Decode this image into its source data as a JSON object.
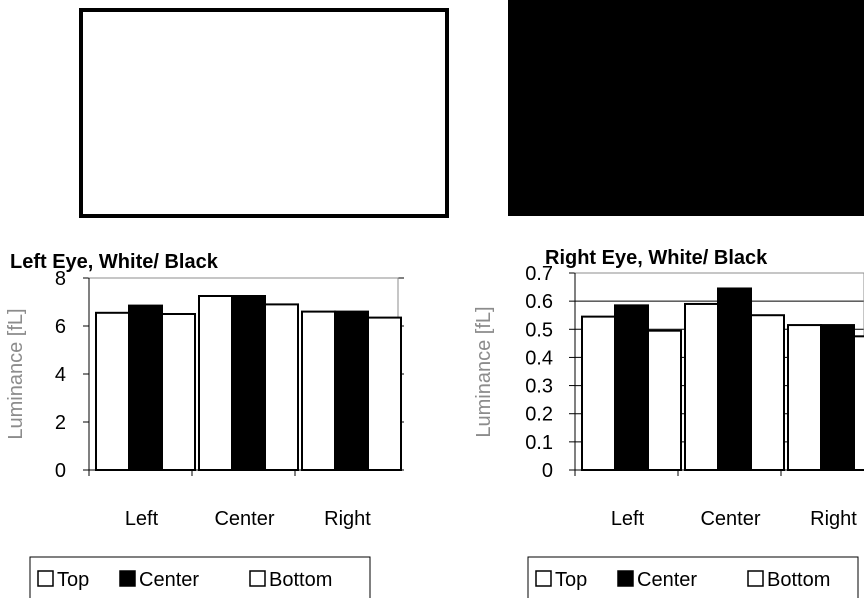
{
  "swatches": [
    {
      "name": "white-pattern",
      "color": "#ffffff"
    },
    {
      "name": "black-pattern",
      "color": "#000000"
    }
  ],
  "colors": {
    "Top": "#ffffff",
    "Center": "#000000",
    "Bottom": "#ffffff"
  },
  "chart_data": [
    {
      "type": "bar",
      "title": "Left Eye, White/ Black",
      "ylabel": "Luminance [fL]",
      "xlabel": "",
      "categories": [
        "Left",
        "Center",
        "Right"
      ],
      "series": [
        {
          "name": "Top",
          "values": [
            6.55,
            7.25,
            6.6
          ]
        },
        {
          "name": "Center",
          "values": [
            6.85,
            7.25,
            6.6
          ]
        },
        {
          "name": "Bottom",
          "values": [
            6.5,
            6.9,
            6.35
          ]
        }
      ],
      "ylim": [
        0,
        8
      ],
      "yticks": [
        "0",
        "2",
        "4",
        "6",
        "8"
      ],
      "grid": false,
      "legend": "bottom"
    },
    {
      "type": "bar",
      "title": "Right Eye, White/ Black",
      "ylabel": "Luminance [fL]",
      "xlabel": "",
      "categories": [
        "Left",
        "Center",
        "Right"
      ],
      "series": [
        {
          "name": "Top",
          "values": [
            0.545,
            0.59,
            0.515
          ]
        },
        {
          "name": "Center",
          "values": [
            0.585,
            0.645,
            0.515
          ]
        },
        {
          "name": "Bottom",
          "values": [
            0.495,
            0.55,
            0.475
          ]
        }
      ],
      "ylim": [
        0,
        0.7
      ],
      "yticks": [
        "0",
        "0.1",
        "0.2",
        "0.3",
        "0.4",
        "0.5",
        "0.6",
        "0.7"
      ],
      "grid": true,
      "legend": "bottom"
    }
  ]
}
